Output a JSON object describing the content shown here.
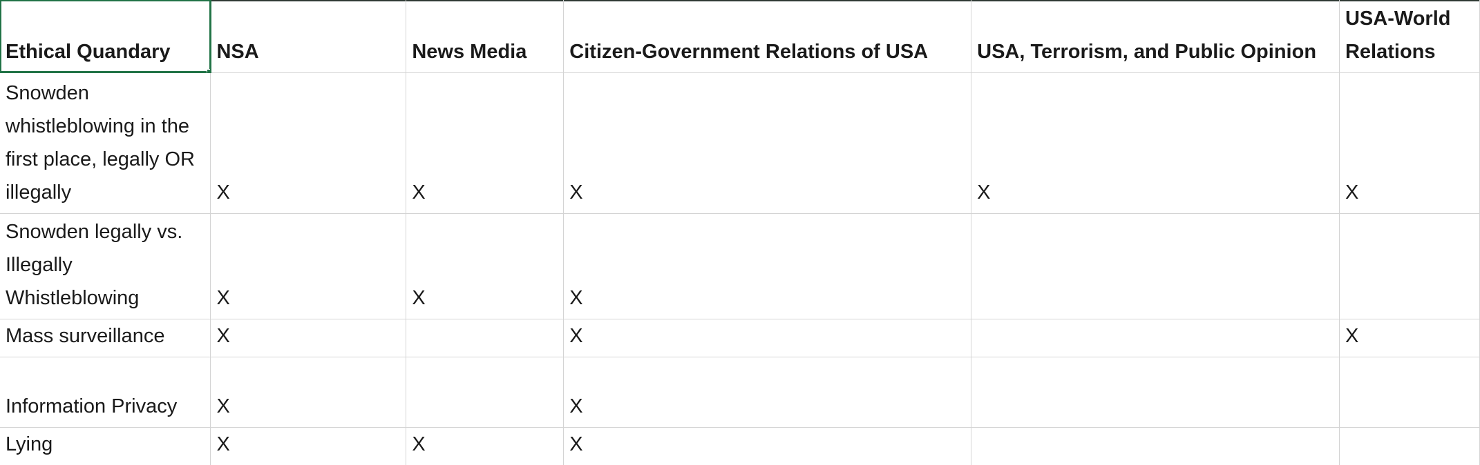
{
  "spreadsheet": {
    "columns": [
      "Ethical Quandary",
      "NSA",
      "News Media",
      "Citizen-Government Relations of USA",
      "USA, Terrorism, and Public Opinion",
      "USA-World Relations"
    ],
    "rows": [
      [
        "Snowden whistleblowing in the first place, legally OR illegally",
        "X",
        "X",
        "X",
        "X",
        "X"
      ],
      [
        "Snowden legally vs. Illegally Whistleblowing",
        "X",
        "X",
        "X",
        "",
        ""
      ],
      [
        "Mass surveillance",
        "X",
        "",
        "X",
        "",
        "X"
      ],
      [
        "Information Privacy",
        "X",
        "",
        "X",
        "",
        ""
      ],
      [
        "Lying",
        "X",
        "X",
        "X",
        "",
        ""
      ]
    ],
    "selected_cell": "Ethical Quandary",
    "accent_color": "#217346",
    "gridline_color": "#d4d4d4"
  }
}
